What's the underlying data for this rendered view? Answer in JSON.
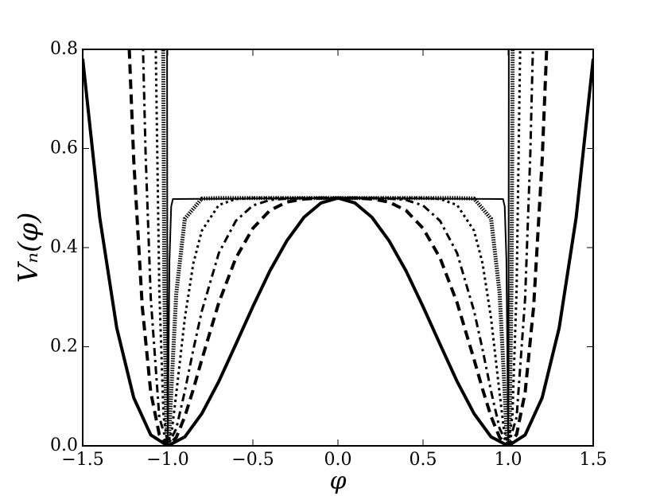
{
  "chart_data": {
    "type": "line",
    "xlabel": "φ",
    "ylabel": "Vₙ(φ)",
    "xlim": [
      -1.5,
      1.5
    ],
    "xticks": [
      {
        "value": -1.5,
        "label": "−1.5"
      },
      {
        "value": -1.0,
        "label": "−1.0"
      },
      {
        "value": -0.5,
        "label": "−0.5"
      },
      {
        "value": 0,
        "label": "0.0"
      },
      {
        "value": 0.5,
        "label": "0.5"
      },
      {
        "value": 1.0,
        "label": "1.0"
      },
      {
        "value": 1.5,
        "label": "1.5"
      }
    ],
    "ylim": [
      0,
      0.8
    ],
    "yticks": [
      {
        "value": 0,
        "label": "0.0"
      },
      {
        "value": 0.2,
        "label": "0.2"
      },
      {
        "value": 0.4,
        "label": "0.4"
      },
      {
        "value": 0.6,
        "label": "0.6"
      },
      {
        "value": 0.8,
        "label": "0.8"
      }
    ],
    "series": [
      {
        "color": "#000000",
        "style": "solid",
        "width": 4,
        "x": [
          -1.5,
          -1.4,
          -1.3,
          -1.2,
          -1.1,
          -1.0,
          -0.9,
          -0.8,
          -0.7,
          -0.6,
          -0.5,
          -0.4,
          -0.3,
          -0.2,
          -0.1,
          0,
          0.1,
          0.2,
          0.3,
          0.4,
          0.5,
          0.6,
          0.7,
          0.8,
          0.9,
          1.0,
          1.1,
          1.2,
          1.3,
          1.4,
          1.5
        ],
        "values": [
          0.781,
          0.461,
          0.238,
          0.097,
          0.022,
          0,
          0.018,
          0.065,
          0.13,
          0.205,
          0.281,
          0.353,
          0.414,
          0.461,
          0.49,
          0.5,
          0.49,
          0.461,
          0.414,
          0.353,
          0.281,
          0.205,
          0.13,
          0.065,
          0.018,
          0,
          0.022,
          0.097,
          0.238,
          0.461,
          0.781
        ]
      },
      {
        "color": "#000000",
        "style": "dashed",
        "width": 4,
        "x": [
          -1.23,
          -1.2,
          -1.15,
          -1.1,
          -1.05,
          -1.0,
          -0.95,
          -0.9,
          -0.85,
          -0.8,
          -0.7,
          -0.6,
          -0.5,
          -0.4,
          -0.3,
          -0.2,
          -0.1,
          0,
          0.1,
          0.2,
          0.3,
          0.4,
          0.5,
          0.6,
          0.7,
          0.8,
          0.85,
          0.9,
          0.95,
          1.0,
          1.05,
          1.1,
          1.15,
          1.2,
          1.23
        ],
        "values": [
          0.831,
          0.576,
          0.281,
          0.108,
          0.023,
          0,
          0.017,
          0.059,
          0.114,
          0.174,
          0.289,
          0.379,
          0.439,
          0.475,
          0.492,
          0.498,
          0.5,
          0.5,
          0.5,
          0.498,
          0.492,
          0.475,
          0.439,
          0.379,
          0.289,
          0.174,
          0.114,
          0.059,
          0.017,
          0,
          0.023,
          0.108,
          0.281,
          0.576,
          0.831
        ]
      },
      {
        "color": "#000000",
        "style": "dashdot",
        "width": 3,
        "x": [
          -1.15,
          -1.13,
          -1.1,
          -1.05,
          -1.0,
          -0.95,
          -0.9,
          -0.85,
          -0.8,
          -0.7,
          -0.6,
          -0.5,
          -0.4,
          -0.3,
          -0.2,
          0,
          0.2,
          0.3,
          0.4,
          0.5,
          0.6,
          0.7,
          0.8,
          0.85,
          0.9,
          0.95,
          1.0,
          1.05,
          1.1,
          1.13,
          1.15
        ],
        "values": [
          0.862,
          0.585,
          0.298,
          0.058,
          0,
          0.035,
          0.11,
          0.194,
          0.272,
          0.389,
          0.454,
          0.485,
          0.496,
          0.499,
          0.5,
          0.5,
          0.5,
          0.499,
          0.496,
          0.485,
          0.454,
          0.389,
          0.272,
          0.194,
          0.11,
          0.035,
          0,
          0.058,
          0.298,
          0.585,
          0.862
        ]
      },
      {
        "color": "#000000",
        "style": "dotted",
        "width": 3,
        "x": [
          -1.075,
          -1.07,
          -1.05,
          -1.025,
          -1.0,
          -0.975,
          -0.95,
          -0.9,
          -0.85,
          -0.8,
          -0.7,
          -0.6,
          -0.5,
          0,
          0.5,
          0.6,
          0.7,
          0.8,
          0.85,
          0.9,
          0.95,
          0.975,
          1.0,
          1.025,
          1.05,
          1.07,
          1.075
        ],
        "values": [
          0.955,
          0.784,
          0.317,
          0.06,
          0,
          0.034,
          0.106,
          0.257,
          0.368,
          0.434,
          0.486,
          0.498,
          0.5,
          0.5,
          0.5,
          0.498,
          0.486,
          0.434,
          0.368,
          0.257,
          0.106,
          0.034,
          0,
          0.06,
          0.317,
          0.784,
          0.955
        ]
      },
      {
        "color": "#000000",
        "style": "hatched",
        "width": 5,
        "x": [
          -1.03,
          -1.02,
          -1.01,
          -1.0,
          -0.99,
          -0.975,
          -0.95,
          -0.9,
          -0.8,
          -0.7,
          0,
          0.7,
          0.8,
          0.9,
          0.95,
          0.975,
          0.99,
          1.0,
          1.01,
          1.02,
          1.03
        ],
        "values": [
          1.02,
          0.329,
          0.06,
          0,
          0.034,
          0.142,
          0.308,
          0.458,
          0.499,
          0.5,
          0.5,
          0.5,
          0.499,
          0.458,
          0.308,
          0.142,
          0.034,
          0,
          0.06,
          0.329,
          1.02
        ]
      },
      {
        "color": "#000000",
        "style": "solid",
        "width": 2,
        "x": [
          -1.005,
          -1.004,
          -1.002,
          -1.0,
          -0.995,
          -0.99,
          -0.98,
          -0.97,
          0,
          0.97,
          0.98,
          0.99,
          0.995,
          1.0,
          1.002,
          1.004,
          1.005
        ],
        "values": [
          1.46,
          0.745,
          0.121,
          0,
          0.2,
          0.375,
          0.483,
          0.498,
          0.5,
          0.498,
          0.483,
          0.375,
          0.2,
          0,
          0.121,
          0.745,
          1.46
        ]
      }
    ]
  }
}
